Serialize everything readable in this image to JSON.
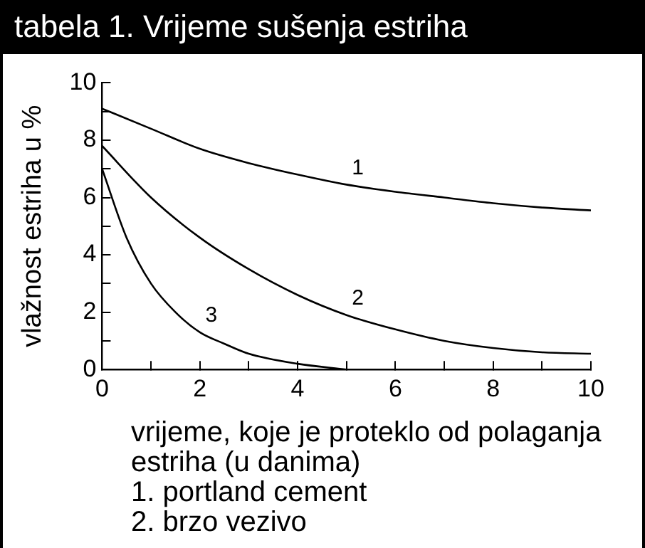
{
  "chart_data": {
    "type": "line",
    "title": "tabela 1. Vrijeme sušenja estriha",
    "xlabel": "vrijeme, koje je proteklo od polaganja estriha (u danima)",
    "ylabel": "vlažnost estriha u %",
    "annotations": [
      "1. portland cement",
      "2. brzo vezivo"
    ],
    "xlim": [
      0,
      10
    ],
    "xticks": [
      0,
      {
        "value": 1,
        "label": null
      },
      2,
      {
        "value": 3,
        "label": null
      },
      4,
      {
        "value": 5,
        "label": null
      },
      6,
      {
        "value": 7,
        "label": null
      },
      8,
      {
        "value": 9,
        "label": null
      },
      10
    ],
    "ylim": [
      0,
      10
    ],
    "yticks": [
      0,
      {
        "value": 1,
        "label": null
      },
      2,
      {
        "value": 3,
        "label": null
      },
      4,
      {
        "value": 5,
        "label": null
      },
      6,
      {
        "value": 7,
        "label": null
      },
      8,
      {
        "value": 9,
        "label": null
      },
      10
    ],
    "grid": false,
    "legend": false,
    "marker": "none",
    "line_style": "solid",
    "series": [
      {
        "name": "1",
        "color": "#000000",
        "x": [
          0,
          1,
          2,
          3,
          4,
          5,
          6,
          7,
          8,
          9,
          10
        ],
        "values": [
          9.1,
          8.4,
          7.7,
          7.2,
          6.8,
          6.45,
          6.2,
          6.0,
          5.8,
          5.65,
          5.55
        ]
      },
      {
        "name": "2",
        "color": "#000000",
        "x": [
          0,
          1,
          2,
          3,
          4,
          5,
          6,
          7,
          8,
          9,
          10
        ],
        "values": [
          7.8,
          6.0,
          4.6,
          3.5,
          2.6,
          1.9,
          1.4,
          1.0,
          0.75,
          0.6,
          0.55
        ]
      },
      {
        "name": "3",
        "color": "#000000",
        "x": [
          0,
          0.5,
          1,
          1.5,
          2,
          2.5,
          3,
          4,
          5
        ],
        "values": [
          7.0,
          4.6,
          3.0,
          2.0,
          1.3,
          0.9,
          0.55,
          0.2,
          0
        ]
      }
    ]
  }
}
